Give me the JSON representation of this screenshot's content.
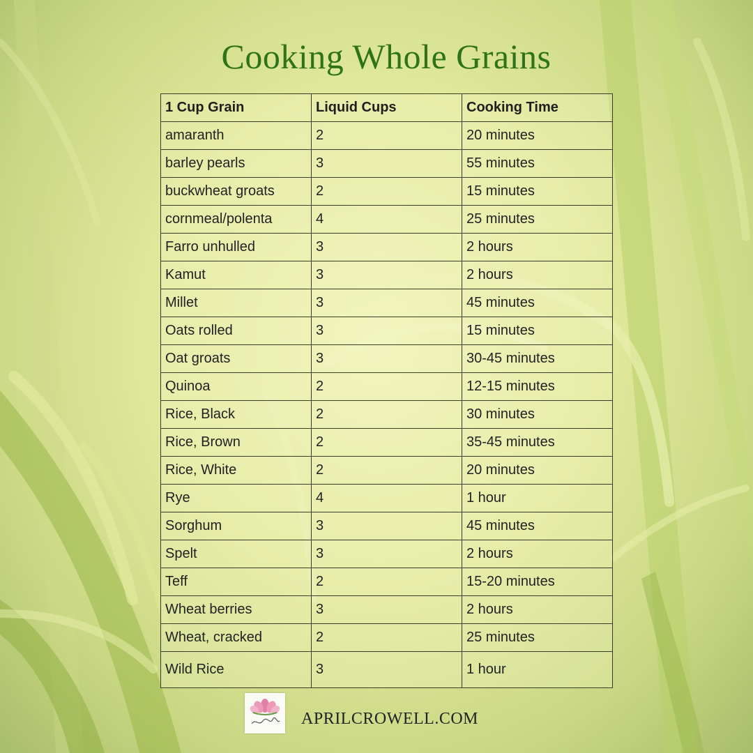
{
  "title": "Cooking Whole Grains",
  "table": {
    "headers": [
      "1 Cup Grain",
      "Liquid Cups",
      "Cooking Time"
    ],
    "rows": [
      [
        "amaranth",
        "2",
        "20 minutes"
      ],
      [
        "barley pearls",
        "3",
        "55 minutes"
      ],
      [
        "buckwheat groats",
        "2",
        "15 minutes"
      ],
      [
        "cornmeal/polenta",
        "4",
        "25 minutes"
      ],
      [
        "Farro unhulled",
        "3",
        "2 hours"
      ],
      [
        "Kamut",
        "3",
        "2 hours"
      ],
      [
        "Millet",
        "3",
        "45 minutes"
      ],
      [
        "Oats rolled",
        "3",
        "15 minutes"
      ],
      [
        "Oat groats",
        "3",
        "30-45 minutes"
      ],
      [
        "Quinoa",
        "2",
        "12-15 minutes"
      ],
      [
        "Rice, Black",
        "2",
        "30 minutes"
      ],
      [
        "Rice, Brown",
        "2",
        "35-45 minutes"
      ],
      [
        "Rice, White",
        "2",
        "20 minutes"
      ],
      [
        "Rye",
        "4",
        "1 hour"
      ],
      [
        "Sorghum",
        "3",
        "45 minutes"
      ],
      [
        "Spelt",
        "3",
        "2 hours"
      ],
      [
        "Teff",
        "2",
        "15-20 minutes"
      ],
      [
        "Wheat berries",
        "3",
        "2 hours"
      ],
      [
        "Wheat, cracked",
        "2",
        "25 minutes"
      ],
      [
        "Wild Rice",
        "3",
        "1 hour"
      ]
    ]
  },
  "footer": {
    "logo_icon": "lotus-flower-logo-icon",
    "logo_signature": "April Crowell",
    "url": "APRILCROWELL.COM"
  },
  "colors": {
    "title": "#2f7319",
    "grid": "#3b3b2a",
    "background": "#dfe79a"
  }
}
